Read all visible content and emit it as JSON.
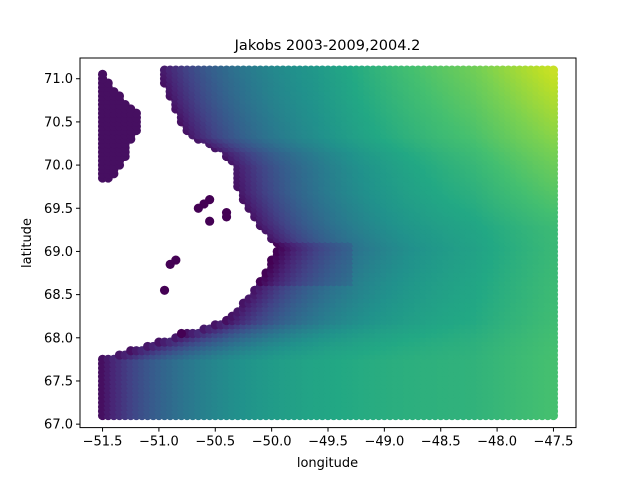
{
  "chart_data": {
    "type": "scatter",
    "title": "Jakobs 2003-2009,2004.2",
    "xlabel": "longitude",
    "ylabel": "latitude",
    "xlim": [
      -51.7,
      -47.3
    ],
    "ylim": [
      66.96,
      71.24
    ],
    "xticks": [
      -51.5,
      -51.0,
      -50.5,
      -50.0,
      -49.5,
      -49.0,
      -48.5,
      -48.0,
      -47.5
    ],
    "xtick_labels": [
      "−51.5",
      "−51.0",
      "−50.5",
      "−50.0",
      "−49.5",
      "−49.0",
      "−48.5",
      "−48.0",
      "−47.5"
    ],
    "yticks": [
      67.0,
      67.5,
      68.0,
      68.5,
      69.0,
      69.5,
      70.0,
      70.5,
      71.0
    ],
    "ytick_labels": [
      "67.0",
      "67.5",
      "68.0",
      "68.5",
      "69.0",
      "69.5",
      "70.0",
      "70.5",
      "71.0"
    ],
    "colormap": [
      "#440154",
      "#482475",
      "#414487",
      "#355f8d",
      "#2a788e",
      "#21918c",
      "#22a884",
      "#44bf70",
      "#7ad151",
      "#bddf26",
      "#fde725"
    ],
    "grid_spacing": {
      "lon": 0.05,
      "lat": 0.05
    },
    "x_range": [
      -51.5,
      -47.5
    ],
    "y_range": [
      67.1,
      71.1
    ],
    "grid": false,
    "legend": "none",
    "land_regions": [
      {
        "name": "west-coast-main",
        "lon_max_profile": [
          [
            67.1,
            -51.5
          ],
          [
            67.75,
            -51.5
          ],
          [
            67.75,
            -50.6
          ],
          [
            67.6,
            -50.35
          ],
          [
            67.5,
            -50.45
          ],
          [
            67.25,
            -50.2
          ],
          [
            67.15,
            -50.1
          ],
          [
            67.1,
            -50.1
          ]
        ]
      },
      {
        "name": "central-land",
        "lon_max_profile": [
          [
            67.75,
            -51.5
          ],
          [
            68.2,
            -50.4
          ],
          [
            68.5,
            -50.2
          ],
          [
            68.8,
            -50.05
          ],
          [
            69.05,
            -49.95
          ],
          [
            69.35,
            -50.15
          ],
          [
            69.7,
            -50.3
          ],
          [
            70.0,
            -50.35
          ],
          [
            70.15,
            -50.45
          ],
          [
            70.35,
            -50.75
          ],
          [
            70.75,
            -50.9
          ],
          [
            71.1,
            -51.0
          ]
        ]
      },
      {
        "name": "north-inlet",
        "lon_max_profile": [
          [
            69.8,
            -51.45
          ],
          [
            70.05,
            -51.3
          ],
          [
            70.2,
            -51.3
          ],
          [
            70.35,
            -51.2
          ],
          [
            70.6,
            -51.2
          ],
          [
            70.8,
            -51.35
          ],
          [
            70.95,
            -51.45
          ],
          [
            71.05,
            -51.5
          ]
        ]
      }
    ],
    "isolated_points": [
      {
        "lon": -50.55,
        "lat": 69.6
      },
      {
        "lon": -50.6,
        "lat": 69.55
      },
      {
        "lon": -50.65,
        "lat": 69.5
      },
      {
        "lon": -50.55,
        "lat": 69.35
      },
      {
        "lon": -50.4,
        "lat": 69.45
      },
      {
        "lon": -50.4,
        "lat": 69.4
      },
      {
        "lon": -50.85,
        "lat": 68.9
      },
      {
        "lon": -50.9,
        "lat": 68.85
      },
      {
        "lon": -50.95,
        "lat": 68.55
      },
      {
        "lon": -50.8,
        "lat": 68.05
      }
    ]
  }
}
